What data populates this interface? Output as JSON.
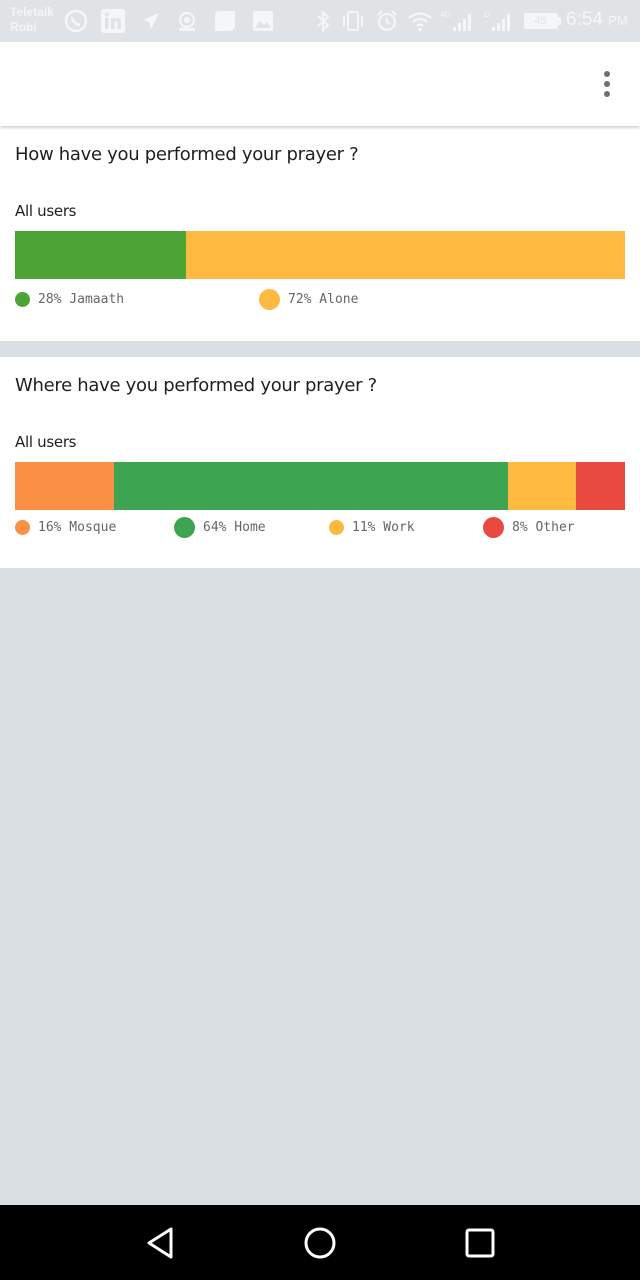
{
  "status_bar": {
    "carrier_line1": "Teletalk",
    "carrier_line2": "Robi",
    "network_1": "4G",
    "network_2": "G",
    "battery": "45",
    "time": "6:54",
    "ampm": "PM",
    "icons": [
      "whatsapp-icon",
      "linkedin-icon",
      "send-icon",
      "hotspot-icon",
      "message-icon",
      "image-icon",
      "bluetooth-icon",
      "vibrate-icon",
      "alarm-icon",
      "wifi-icon",
      "signal-icon",
      "signal-icon",
      "battery-icon"
    ]
  },
  "app_bar": {
    "menu_icon": "more-vertical-icon"
  },
  "poll_1": {
    "question": "How have you performed your prayer ?",
    "segment_label": "All users",
    "options": [
      {
        "label": "28% Jamaath",
        "value": 28,
        "color": "#4ca436"
      },
      {
        "label": "72% Alone",
        "value": 72,
        "color": "#fdb940"
      }
    ]
  },
  "poll_2": {
    "question": "Where have you performed your prayer ?",
    "segment_label": "All users",
    "options": [
      {
        "label": "16% Mosque",
        "value": 16,
        "color": "#fb8f43"
      },
      {
        "label": "64% Home",
        "value": 64,
        "color": "#3da552"
      },
      {
        "label": "11% Work",
        "value": 11,
        "color": "#fdb940"
      },
      {
        "label": "8% Other",
        "value": 8,
        "color": "#e84a3f"
      }
    ]
  },
  "nav_bar": {
    "icons": [
      "back-icon",
      "home-icon",
      "recents-icon"
    ]
  }
}
